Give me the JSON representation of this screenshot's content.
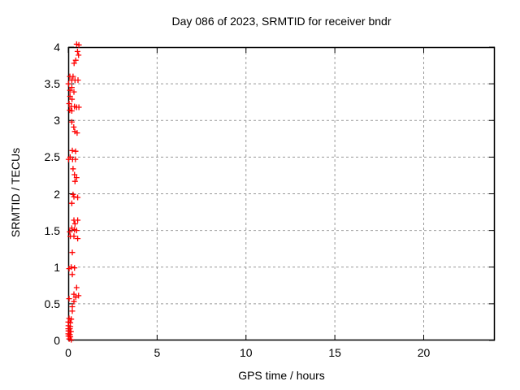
{
  "title": "Day 086 of 2023, SRMTID for receiver bndr",
  "colors": {
    "marker": "#ff0000",
    "grid": "#999999",
    "border": "#000000",
    "background": "#ffffff",
    "text": "#000000"
  },
  "chart_data": {
    "type": "scatter",
    "title": "Day 086 of 2023, SRMTID for receiver bndr",
    "xlabel": "GPS time / hours",
    "ylabel": "SRMTID / TECUs",
    "xlim": [
      0,
      24
    ],
    "ylim": [
      0,
      4
    ],
    "xticks": [
      0,
      5,
      10,
      15,
      20
    ],
    "yticks": [
      0,
      0.5,
      1,
      1.5,
      2,
      2.5,
      3,
      3.5,
      4
    ],
    "grid": true,
    "grid_style": "dashed",
    "legend": "none",
    "marker": "plus",
    "series": [
      {
        "name": "SRMTID",
        "color": "#ff0000",
        "points": [
          [
            0.47,
            4.04
          ],
          [
            0.6,
            4.03
          ],
          [
            0.52,
            3.94
          ],
          [
            0.58,
            3.89
          ],
          [
            0.42,
            3.82
          ],
          [
            0.33,
            3.78
          ],
          [
            0.09,
            3.6
          ],
          [
            0.27,
            3.6
          ],
          [
            0.2,
            3.55
          ],
          [
            0.38,
            3.55
          ],
          [
            0.55,
            3.55
          ],
          [
            0.01,
            3.5
          ],
          [
            0.2,
            3.45
          ],
          [
            0.1,
            3.41
          ],
          [
            0.32,
            3.39
          ],
          [
            0.1,
            3.33
          ],
          [
            0.21,
            3.29
          ],
          [
            0.05,
            3.23
          ],
          [
            0.17,
            3.19
          ],
          [
            0.35,
            3.19
          ],
          [
            0.47,
            3.18
          ],
          [
            0.6,
            3.18
          ],
          [
            0.08,
            3.14
          ],
          [
            0.2,
            3.13
          ],
          [
            0.2,
            2.98
          ],
          [
            0.31,
            2.91
          ],
          [
            0.37,
            2.85
          ],
          [
            0.5,
            2.83
          ],
          [
            0.23,
            2.59
          ],
          [
            0.41,
            2.58
          ],
          [
            0.11,
            2.5
          ],
          [
            0.02,
            2.47
          ],
          [
            0.24,
            2.47
          ],
          [
            0.4,
            2.47
          ],
          [
            0.27,
            2.34
          ],
          [
            0.35,
            2.26
          ],
          [
            0.47,
            2.22
          ],
          [
            0.38,
            2.17
          ],
          [
            0.27,
            1.99
          ],
          [
            0.32,
            1.96
          ],
          [
            0.53,
            1.95
          ],
          [
            0.2,
            1.87
          ],
          [
            0.32,
            1.64
          ],
          [
            0.53,
            1.64
          ],
          [
            0.38,
            1.59
          ],
          [
            0.2,
            1.53
          ],
          [
            0.35,
            1.51
          ],
          [
            0.47,
            1.5
          ],
          [
            0.08,
            1.48
          ],
          [
            0.12,
            1.42
          ],
          [
            0.32,
            1.42
          ],
          [
            0.53,
            1.39
          ],
          [
            0.23,
            1.2
          ],
          [
            0.17,
            1.0
          ],
          [
            0.35,
            0.99
          ],
          [
            0.05,
            0.98
          ],
          [
            0.23,
            0.9
          ],
          [
            0.47,
            0.72
          ],
          [
            0.32,
            0.63
          ],
          [
            0.58,
            0.61
          ],
          [
            0.42,
            0.59
          ],
          [
            0.05,
            0.57
          ],
          [
            0.32,
            0.53
          ],
          [
            0.23,
            0.46
          ],
          [
            0.23,
            0.4
          ],
          [
            0.05,
            0.3
          ],
          [
            0.17,
            0.29
          ],
          [
            0.0,
            0.25
          ],
          [
            0.12,
            0.24
          ],
          [
            0.01,
            0.2
          ],
          [
            0.12,
            0.19
          ],
          [
            0.0,
            0.16
          ],
          [
            0.09,
            0.16
          ],
          [
            0.01,
            0.13
          ],
          [
            0.15,
            0.12
          ],
          [
            0.0,
            0.09
          ],
          [
            0.09,
            0.08
          ],
          [
            0.01,
            0.06
          ],
          [
            0.12,
            0.05
          ],
          [
            0.05,
            0.02
          ],
          [
            0.17,
            0.01
          ]
        ]
      }
    ]
  }
}
